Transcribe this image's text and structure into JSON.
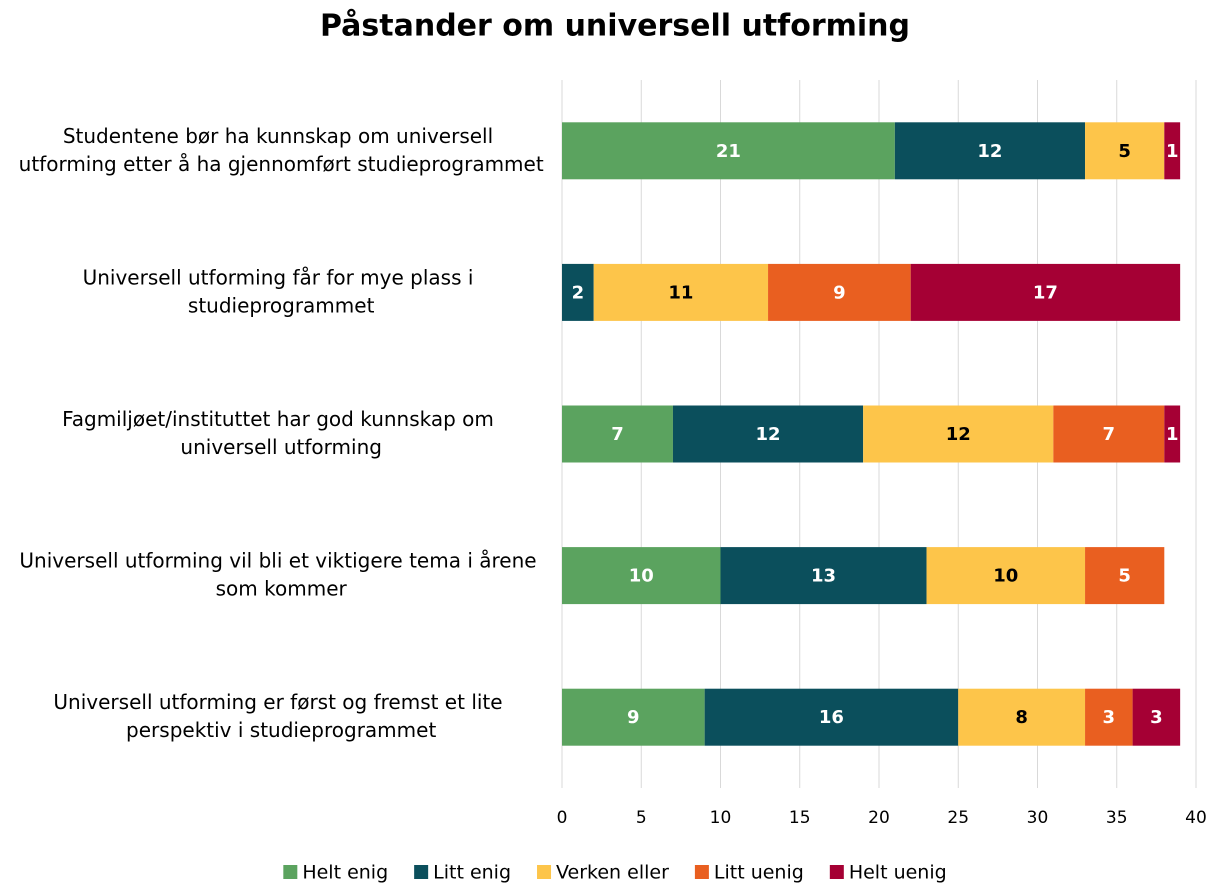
{
  "chart_data": {
    "type": "stacked-barh",
    "title": "Påstander om universell utforming",
    "categories": [
      "Studentene bør ha kunnskap om universell utforming etter å ha gjennomført studieprogrammet",
      "Universell utforming får for mye plass i studieprogrammet",
      "Fagmiljøet/instituttet har god kunnskap om universell utforming",
      "Universell utforming vil bli et viktigere tema i årene som kommer",
      "Universell utforming er først og fremst et lite perspektiv i studieprogrammet"
    ],
    "series": [
      {
        "name": "Helt enig",
        "color": "#5ba35f",
        "label_color": "#ffffff",
        "values": [
          21,
          null,
          7,
          10,
          9
        ]
      },
      {
        "name": "Litt enig",
        "color": "#0b4f5c",
        "label_color": "#ffffff",
        "values": [
          12,
          2,
          12,
          13,
          16
        ]
      },
      {
        "name": "Verken eller",
        "color": "#fdc54a",
        "label_color": "#000000",
        "values": [
          5,
          11,
          12,
          10,
          8
        ]
      },
      {
        "name": "Litt uenig",
        "color": "#e95f20",
        "label_color": "#ffffff",
        "values": [
          null,
          9,
          7,
          5,
          3
        ]
      },
      {
        "name": "Helt uenig",
        "color": "#a50034",
        "label_color": "#ffffff",
        "values": [
          1,
          17,
          1,
          null,
          3
        ]
      }
    ],
    "xlim": [
      0,
      40
    ],
    "xticks": [
      0,
      5,
      10,
      15,
      20,
      25,
      30,
      35,
      40
    ],
    "grid": true,
    "legend": "bottom"
  }
}
